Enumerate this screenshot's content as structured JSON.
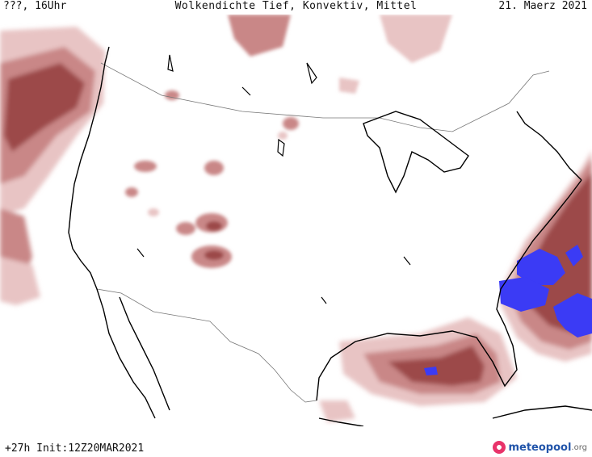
{
  "header": {
    "left": "???, 16Uhr",
    "center": "Wolkendichte   Tief, Konvektiv, Mittel",
    "right": "21. Maerz 2021"
  },
  "footer": {
    "run_info": "+27h  Init:12Z20MAR2021",
    "logo_name": "meteopool",
    "logo_tld": ".org"
  },
  "legend_colors": {
    "cloud_light": "#e8c4c4",
    "cloud_medium": "#c98787",
    "cloud_dark": "#9c4848",
    "convective": "#3b3bf5",
    "coastline": "#000000",
    "border": "#777777"
  }
}
